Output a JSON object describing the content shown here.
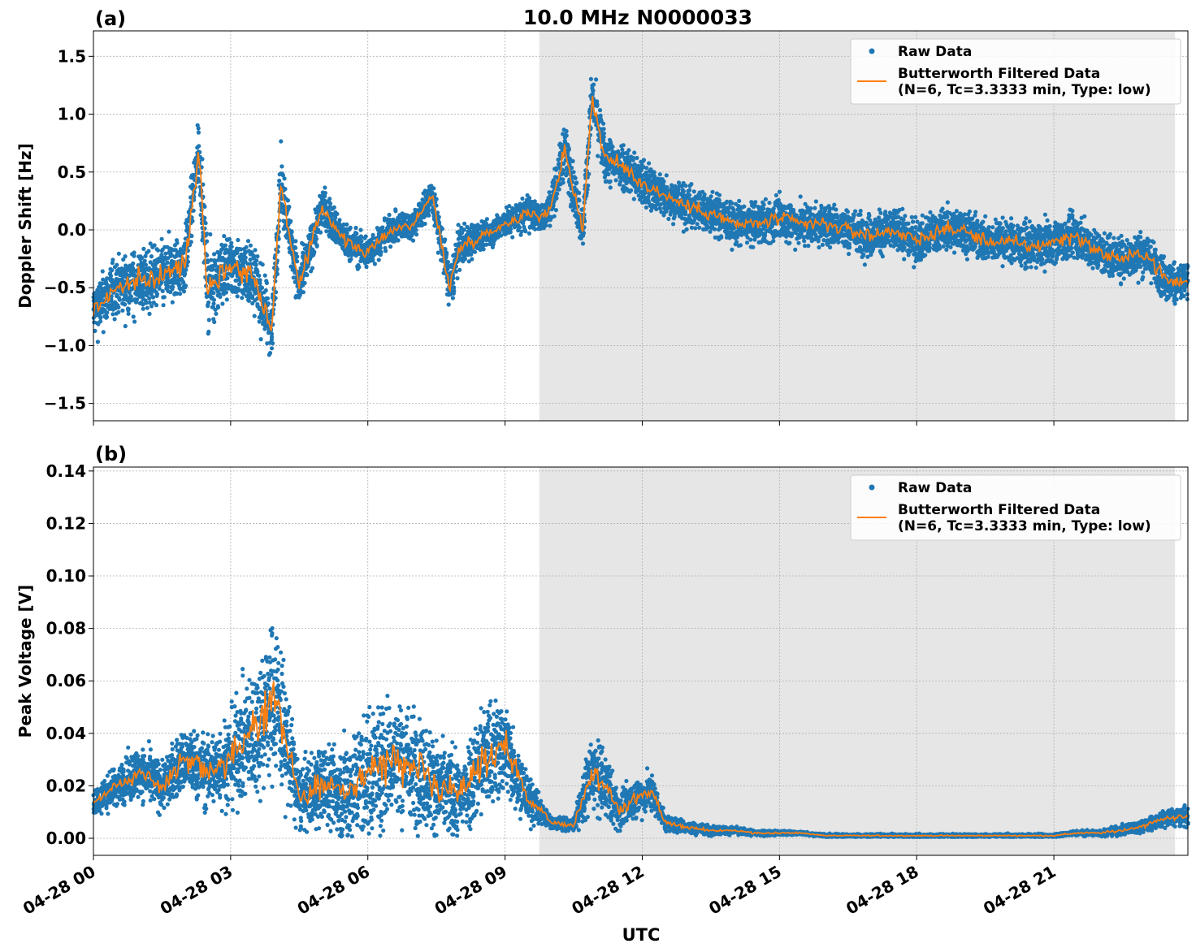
{
  "figure": {
    "title": "10.0 MHz N0000033",
    "xlabel": "UTC",
    "x_tick_labels": [
      "04-28 00",
      "04-28 03",
      "04-28 06",
      "04-28 09",
      "04-28 12",
      "04-28 15",
      "04-28 18",
      "04-28 21"
    ],
    "shaded_region_hours": [
      9.75,
      23.65
    ],
    "x_range_hours": [
      0,
      23.93
    ],
    "colors": {
      "raw": "#1f77b4",
      "filtered": "#ff7f0e",
      "shade": "#e6e6e6",
      "grid": "#b0b0b0"
    }
  },
  "chart_data": [
    {
      "type": "line",
      "panel_label": "(a)",
      "ylabel": "Doppler Shift [Hz]",
      "ylim": [
        -1.65,
        1.72
      ],
      "y_ticks": [
        -1.5,
        -1.0,
        -0.5,
        0.0,
        0.5,
        1.0,
        1.5
      ],
      "y_tick_labels": [
        "−1.5",
        "−1.0",
        "−0.5",
        "0.0",
        "0.5",
        "1.0",
        "1.5"
      ],
      "grid": true,
      "legend_position": "top-right",
      "legend": {
        "raw": "Raw Data",
        "filtered_line1": "Butterworth Filtered Data",
        "filtered_line2": "(N=6, Tc=3.3333 min, Type: low)"
      },
      "x_hours": [
        0,
        0.5,
        1.0,
        1.5,
        2.0,
        2.3,
        2.5,
        3.0,
        3.5,
        3.9,
        4.1,
        4.5,
        5.0,
        5.5,
        6.0,
        6.5,
        7.0,
        7.4,
        7.8,
        8.0,
        8.5,
        9.0,
        9.5,
        9.8,
        10.0,
        10.3,
        10.7,
        10.9,
        11.2,
        11.6,
        12.0,
        12.5,
        13.0,
        13.5,
        14.0,
        14.5,
        15.0,
        15.5,
        16.0,
        16.5,
        17.0,
        17.5,
        18.0,
        18.5,
        19.0,
        19.5,
        20.0,
        20.5,
        21.0,
        21.5,
        22.0,
        22.5,
        23.0,
        23.5,
        23.93
      ],
      "filtered_hz": [
        -0.7,
        -0.5,
        -0.45,
        -0.4,
        -0.3,
        0.7,
        -0.5,
        -0.3,
        -0.4,
        -0.85,
        0.4,
        -0.5,
        0.2,
        -0.1,
        -0.2,
        0.0,
        0.05,
        0.3,
        -0.5,
        -0.15,
        -0.05,
        0.05,
        0.15,
        0.1,
        0.2,
        0.7,
        0.0,
        1.15,
        0.6,
        0.55,
        0.4,
        0.3,
        0.2,
        0.15,
        0.05,
        0.05,
        0.1,
        0.05,
        0.05,
        0.0,
        -0.05,
        0.0,
        -0.1,
        0.0,
        0.0,
        -0.1,
        -0.1,
        -0.15,
        -0.1,
        -0.05,
        -0.2,
        -0.25,
        -0.2,
        -0.45,
        -0.45
      ],
      "raw_spread_hz": [
        0.4,
        0.4,
        0.45,
        0.45,
        0.45,
        0.45,
        0.55,
        0.45,
        0.45,
        0.45,
        0.45,
        0.35,
        0.3,
        0.25,
        0.25,
        0.2,
        0.2,
        0.25,
        0.35,
        0.3,
        0.2,
        0.2,
        0.25,
        0.2,
        0.25,
        0.4,
        0.3,
        0.4,
        0.35,
        0.35,
        0.35,
        0.3,
        0.3,
        0.3,
        0.3,
        0.3,
        0.3,
        0.3,
        0.3,
        0.3,
        0.3,
        0.3,
        0.3,
        0.3,
        0.3,
        0.3,
        0.3,
        0.3,
        0.3,
        0.3,
        0.3,
        0.3,
        0.3,
        0.3,
        0.3
      ]
    },
    {
      "type": "line",
      "panel_label": "(b)",
      "ylabel": "Peak Voltage [V]",
      "ylim": [
        -0.0065,
        0.1415
      ],
      "y_ticks": [
        0.0,
        0.02,
        0.04,
        0.06,
        0.08,
        0.1,
        0.12,
        0.14
      ],
      "y_tick_labels": [
        "0.00",
        "0.02",
        "0.04",
        "0.06",
        "0.08",
        "0.10",
        "0.12",
        "0.14"
      ],
      "grid": true,
      "legend_position": "top-right",
      "legend": {
        "raw": "Raw Data",
        "filtered_line1": "Butterworth Filtered Data",
        "filtered_line2": "(N=6, Tc=3.3333 min, Type: low)"
      },
      "x_hours": [
        0,
        0.5,
        1.0,
        1.5,
        2.0,
        2.5,
        3.0,
        3.5,
        4.0,
        4.3,
        4.5,
        5.0,
        5.5,
        6.0,
        6.5,
        7.0,
        7.5,
        8.0,
        8.5,
        9.0,
        9.5,
        9.8,
        10.0,
        10.5,
        10.9,
        11.2,
        11.5,
        11.8,
        12.2,
        12.5,
        13.0,
        13.5,
        14.0,
        14.5,
        15.0,
        15.5,
        16.0,
        16.5,
        17.0,
        17.5,
        18.0,
        18.5,
        19.0,
        19.5,
        20.0,
        20.5,
        21.0,
        21.5,
        22.0,
        22.5,
        23.0,
        23.5,
        23.93
      ],
      "filtered_v": [
        0.013,
        0.02,
        0.025,
        0.02,
        0.03,
        0.025,
        0.03,
        0.04,
        0.055,
        0.03,
        0.015,
        0.02,
        0.018,
        0.025,
        0.03,
        0.028,
        0.02,
        0.015,
        0.03,
        0.035,
        0.015,
        0.01,
        0.006,
        0.005,
        0.025,
        0.02,
        0.01,
        0.015,
        0.018,
        0.006,
        0.004,
        0.003,
        0.003,
        0.002,
        0.002,
        0.002,
        0.001,
        0.001,
        0.001,
        0.001,
        0.001,
        0.001,
        0.001,
        0.001,
        0.001,
        0.001,
        0.001,
        0.002,
        0.002,
        0.003,
        0.005,
        0.008,
        0.008
      ],
      "raw_spread_v": [
        0.007,
        0.012,
        0.016,
        0.016,
        0.02,
        0.022,
        0.03,
        0.04,
        0.05,
        0.035,
        0.02,
        0.025,
        0.03,
        0.04,
        0.04,
        0.035,
        0.03,
        0.025,
        0.035,
        0.03,
        0.015,
        0.008,
        0.004,
        0.004,
        0.025,
        0.02,
        0.012,
        0.012,
        0.012,
        0.005,
        0.004,
        0.003,
        0.002,
        0.002,
        0.0015,
        0.001,
        0.001,
        0.001,
        0.001,
        0.001,
        0.001,
        0.001,
        0.001,
        0.001,
        0.001,
        0.001,
        0.001,
        0.0015,
        0.002,
        0.003,
        0.004,
        0.005,
        0.006
      ]
    }
  ]
}
